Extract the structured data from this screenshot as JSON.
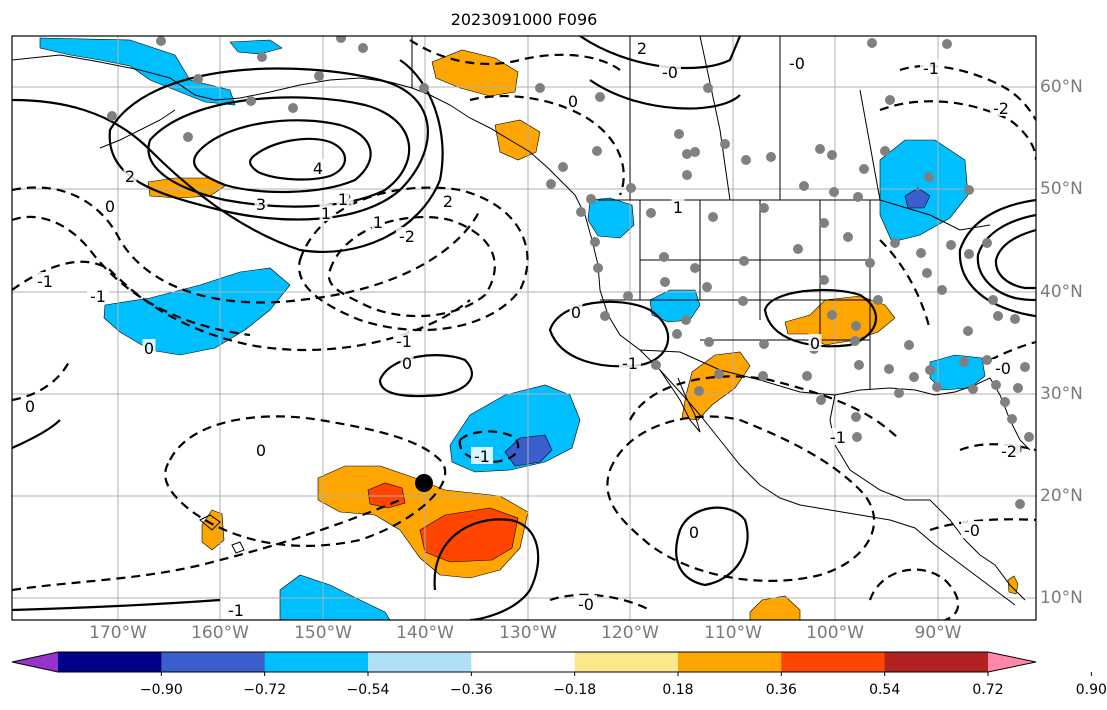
{
  "title": "2023091000 F096",
  "lon_labels": [
    "170°W",
    "160°W",
    "150°W",
    "140°W",
    "130°W",
    "120°W",
    "110°W",
    "100°W",
    "90°W"
  ],
  "lat_labels": [
    "60°N",
    "50°N",
    "40°N",
    "30°N",
    "20°N",
    "10°N"
  ],
  "colorbar": {
    "tick_labels": [
      "−0.90",
      "−0.72",
      "−0.54",
      "−0.36",
      "−0.18",
      "0.18",
      "0.36",
      "0.54",
      "0.72",
      "0.90"
    ],
    "colors": [
      "#9932cc",
      "#00008b",
      "#3a5fcd",
      "#00bfff",
      "#b0e0f8",
      "#ffffff",
      "#fae88a",
      "#ffa500",
      "#ff4500",
      "#b22222",
      "#ff88aa"
    ]
  },
  "contour_labels": [
    "4",
    "3",
    "2",
    "1",
    "2",
    "1",
    "0",
    "-1",
    "2",
    "-2",
    "-1",
    "1",
    "0",
    "-1",
    "0",
    "-1",
    "0",
    "2",
    "-0",
    "0",
    "-0",
    "1",
    "-1",
    "0",
    "-1",
    "0",
    "-0",
    "-1",
    "-0",
    "-2",
    "-1",
    "-2",
    "0",
    "0",
    "-0"
  ],
  "colors": {
    "land_outline": "#000000",
    "grid": "#b0b0b0",
    "station": "#808080"
  }
}
